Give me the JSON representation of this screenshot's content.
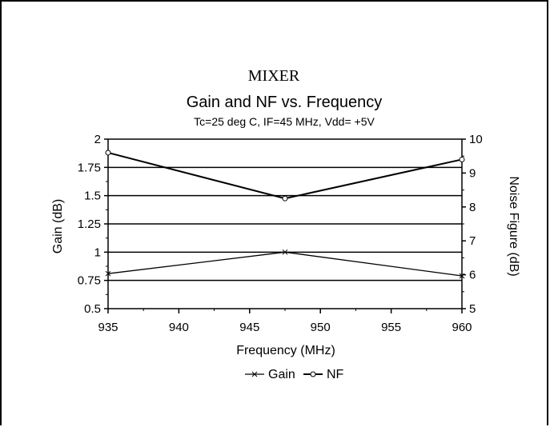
{
  "chart_data": {
    "type": "line",
    "title": "MIXER",
    "subtitle": "Gain and NF vs. Frequency",
    "conditions": "Tc=25 deg C, IF=45 MHz, Vdd= +5V",
    "xlabel": "Frequency (MHz)",
    "ylabel": "Gain (dB)",
    "y2label": "Noise Figure (dB)",
    "xlim": [
      935,
      960
    ],
    "ylim": [
      0.5,
      2
    ],
    "y2lim": [
      5,
      10
    ],
    "x_ticks": [
      "935",
      "940",
      "945",
      "950",
      "955",
      "960"
    ],
    "y_ticks": [
      "0.5",
      "0.75",
      "1",
      "1.25",
      "1.5",
      "1.75",
      "2"
    ],
    "y2_ticks": [
      "5",
      "6",
      "7",
      "8",
      "9",
      "10"
    ],
    "grid": true,
    "legend_position": "bottom",
    "series": [
      {
        "name": "Gain",
        "axis": "left",
        "marker": "x",
        "x": [
          935,
          947.5,
          960
        ],
        "values": [
          0.81,
          1.0,
          0.79
        ]
      },
      {
        "name": "NF",
        "axis": "right",
        "marker": "o",
        "x": [
          935,
          947.5,
          960
        ],
        "values": [
          9.6,
          8.25,
          9.4
        ]
      }
    ]
  }
}
